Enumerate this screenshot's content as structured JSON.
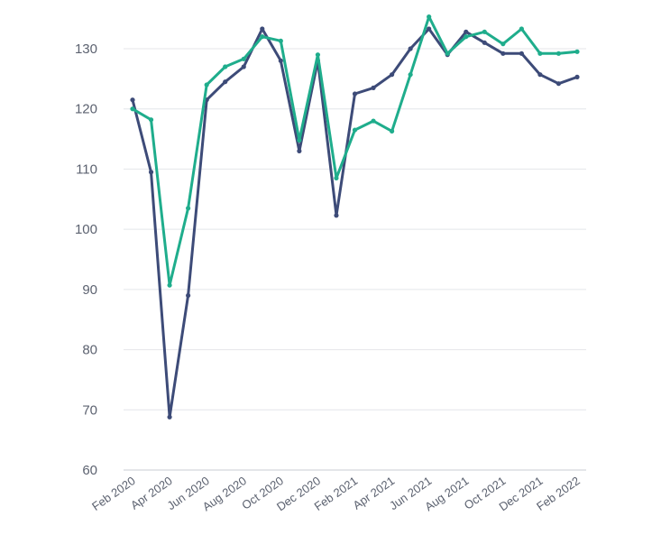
{
  "chart_data": {
    "type": "line",
    "title": "",
    "xlabel": "",
    "ylabel": "",
    "ylim": [
      60,
      135
    ],
    "yticks": [
      60,
      70,
      80,
      90,
      100,
      110,
      120,
      130
    ],
    "grid": true,
    "x_tick_labels": [
      "Feb 2020",
      "Apr 2020",
      "Jun 2020",
      "Aug 2020",
      "Oct 2020",
      "Dec 2020",
      "Feb 2021",
      "Apr 2021",
      "Jun 2021",
      "Aug 2021",
      "Oct 2021",
      "Dec 2021",
      "Feb 2022"
    ],
    "x": [
      "Feb 2020",
      "Mar 2020",
      "Apr 2020",
      "May 2020",
      "Jun 2020",
      "Jul 2020",
      "Aug 2020",
      "Sep 2020",
      "Oct 2020",
      "Nov 2020",
      "Dec 2020",
      "Jan 2021",
      "Feb 2021",
      "Mar 2021",
      "Apr 2021",
      "May 2021",
      "Jun 2021",
      "Jul 2021",
      "Aug 2021",
      "Sep 2021",
      "Oct 2021",
      "Nov 2021",
      "Dec 2021",
      "Jan 2022",
      "Feb 2022"
    ],
    "series": [
      {
        "color": "#3d4b78",
        "values": [
          121.5,
          109.5,
          68.8,
          89.0,
          121.5,
          124.5,
          127.0,
          133.3,
          128.0,
          113.0,
          128.0,
          102.3,
          122.5,
          123.5,
          125.7,
          130.0,
          133.3,
          129.0,
          132.8,
          131.0,
          129.2,
          129.2,
          125.7,
          124.2,
          125.3
        ]
      },
      {
        "color": "#1fad8c",
        "values": [
          120.0,
          118.2,
          90.7,
          103.5,
          124.0,
          127.0,
          128.3,
          132.0,
          131.3,
          114.8,
          129.0,
          108.5,
          116.5,
          118.0,
          116.3,
          125.7,
          135.3,
          129.2,
          132.0,
          132.8,
          130.8,
          133.3,
          129.2,
          129.2,
          129.5
        ]
      }
    ]
  }
}
